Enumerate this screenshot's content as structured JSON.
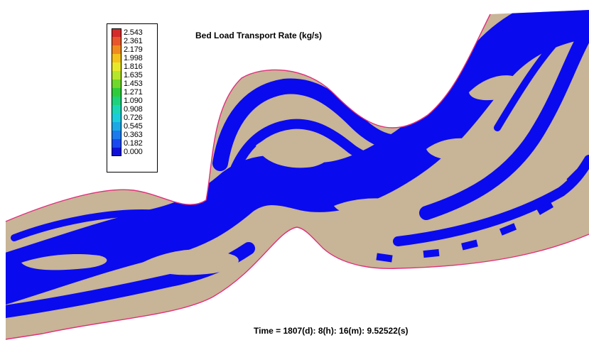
{
  "title": "Bed Load Transport Rate (kg/s)",
  "timestamp": "Time = 1807(d): 8(h): 16(m): 9.52522(s)",
  "colors": {
    "background": "#ffffff",
    "bank": "#c8b496",
    "channel": "#0a0aee",
    "boundary": "#e0307a"
  },
  "legend": {
    "entries": [
      {
        "label": "2.543",
        "color": "#d42a2a"
      },
      {
        "label": "2.361",
        "color": "#e8552a"
      },
      {
        "label": "2.179",
        "color": "#f08a1e"
      },
      {
        "label": "1.998",
        "color": "#f4c21a"
      },
      {
        "label": "1.816",
        "color": "#e8e82a"
      },
      {
        "label": "1.635",
        "color": "#b4e62a"
      },
      {
        "label": "1.453",
        "color": "#6fd82a"
      },
      {
        "label": "1.271",
        "color": "#2ecc3a"
      },
      {
        "label": "1.090",
        "color": "#1ed27c"
      },
      {
        "label": "0.908",
        "color": "#1ad6b6"
      },
      {
        "label": "0.726",
        "color": "#1accdc"
      },
      {
        "label": "0.545",
        "color": "#1aa8e6"
      },
      {
        "label": "0.363",
        "color": "#1a7aee"
      },
      {
        "label": "0.182",
        "color": "#1a48f0"
      },
      {
        "label": "0.000",
        "color": "#1010d8"
      }
    ]
  }
}
